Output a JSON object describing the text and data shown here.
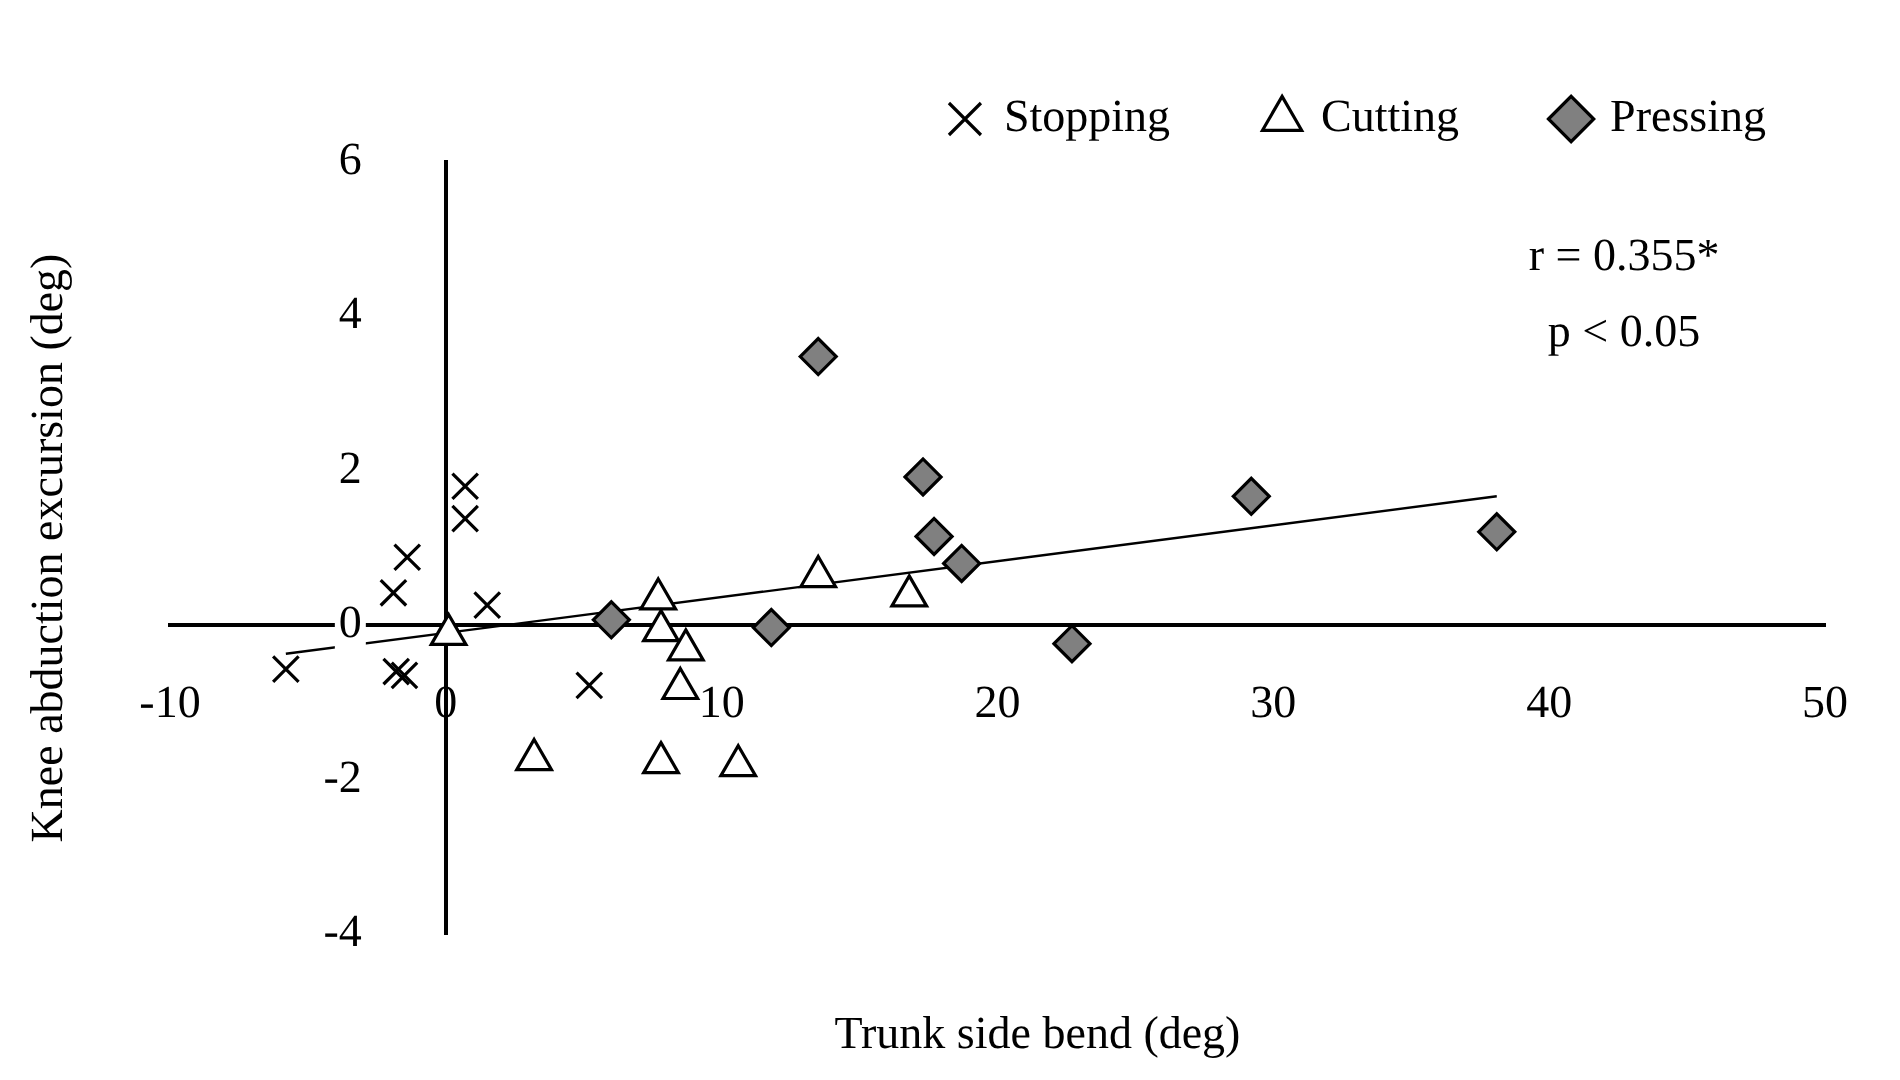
{
  "chart_data": {
    "type": "scatter",
    "xlabel": "Trunk side bend (deg)",
    "ylabel": "Knee abduction excursion (deg)",
    "xlim": [
      -10,
      50
    ],
    "xticks": [
      -10,
      0,
      10,
      20,
      30,
      40,
      50
    ],
    "ylim": [
      -4,
      6
    ],
    "yticks": [
      -4,
      -2,
      0,
      2,
      4,
      6
    ],
    "grid": false,
    "legend": "top right",
    "annotations": [
      "r = 0.355*",
      "p < 0.05"
    ],
    "series": [
      {
        "name": "Stopping",
        "color": "#000000",
        "marker": "cross",
        "x": [
          -5.8,
          -1.8,
          -1.5,
          -1.9,
          -1.4,
          0.7,
          0.7,
          1.5,
          5.2
        ],
        "values": [
          -0.57,
          -0.6,
          -0.65,
          0.42,
          0.88,
          1.8,
          1.38,
          0.26,
          -0.78
        ]
      },
      {
        "name": "Cutting",
        "color": "#000000",
        "marker": "triangle",
        "x": [
          0.1,
          3.2,
          7.7,
          7.8,
          8.7,
          8.5,
          7.8,
          10.6,
          13.5,
          16.8
        ],
        "values": [
          -0.12,
          -1.74,
          0.34,
          -0.07,
          -0.32,
          -0.82,
          -1.78,
          -1.82,
          0.63,
          0.38
        ]
      },
      {
        "name": "Pressing",
        "color": "#808080",
        "marker": "diamond",
        "x": [
          6.0,
          11.8,
          13.5,
          17.3,
          17.7,
          18.7,
          22.7,
          29.2,
          38.1
        ],
        "values": [
          0.07,
          -0.03,
          3.48,
          1.92,
          1.15,
          0.8,
          -0.24,
          1.67,
          1.21
        ]
      },
      {
        "type": "line",
        "color": "#000000",
        "marker": "none",
        "x": [
          -5.8,
          38.1
        ],
        "values": [
          -0.37,
          1.67
        ]
      }
    ]
  }
}
